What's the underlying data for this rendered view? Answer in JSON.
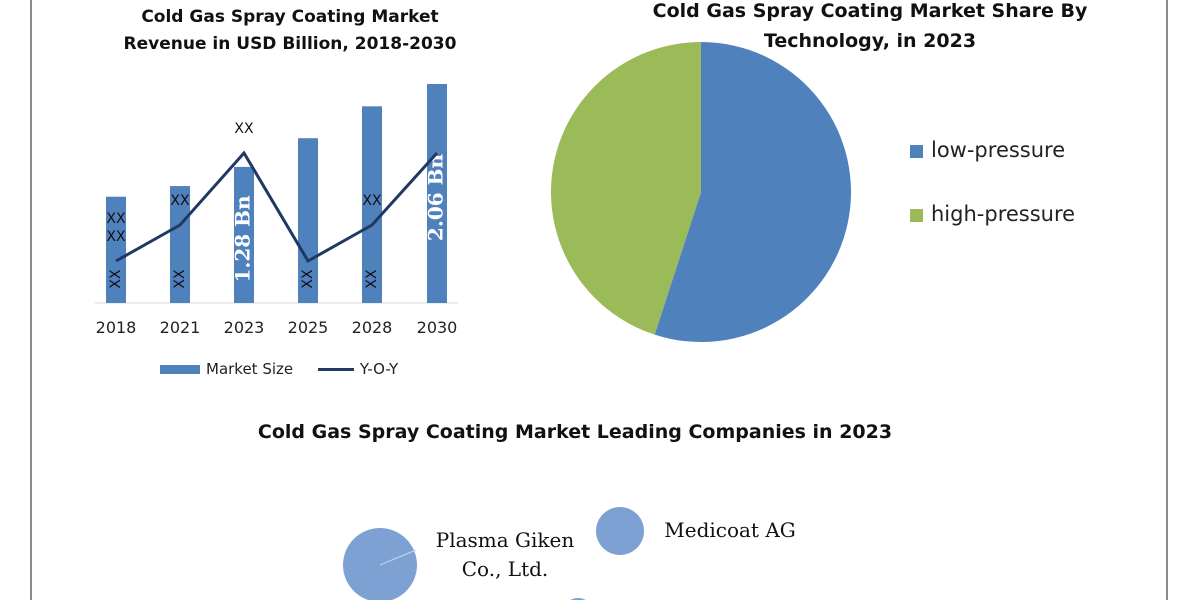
{
  "chart_data": [
    {
      "type": "bar",
      "title": "Cold Gas Spray Coating Market Revenue in USD Billion, 2018-2030",
      "categories": [
        "2018",
        "2021",
        "2023",
        "2025",
        "2028",
        "2030"
      ],
      "series": [
        {
          "name": "Market Size",
          "type": "bar",
          "values": [
            1.0,
            1.1,
            1.28,
            1.55,
            1.85,
            2.06
          ],
          "inner_labels": [
            "XX",
            "XX",
            "1.28 Bn",
            "XX",
            "XX",
            "2.06 Bn"
          ],
          "color": "#4f81bd"
        },
        {
          "name": "Y-O-Y",
          "type": "line",
          "values": [
            2,
            3,
            5,
            2,
            3,
            5
          ],
          "point_labels": [
            "XX",
            "XX",
            "XX",
            "",
            "XX",
            ""
          ],
          "color": "#1f3864"
        }
      ],
      "upper_labels": [
        "XX",
        "",
        "",
        "",
        "",
        ""
      ],
      "legend_position": "bottom",
      "grid": false
    },
    {
      "type": "pie",
      "title": "Cold Gas Spray Coating Market Share By Technology, in 2023",
      "categories": [
        "low-pressure",
        "high-pressure"
      ],
      "values": [
        55,
        45
      ],
      "colors": [
        "#4f81bd",
        "#9bbb59"
      ],
      "legend_position": "right"
    }
  ],
  "companies": {
    "title": "Cold Gas Spray Coating Market Leading Companies in 2023",
    "items": [
      {
        "name": "Plasma Giken Co., Ltd.",
        "line1": "Plasma Giken",
        "line2": "Co., Ltd."
      },
      {
        "name": "Medicoat AG"
      }
    ],
    "bubble_color": "#7ea1d3"
  }
}
